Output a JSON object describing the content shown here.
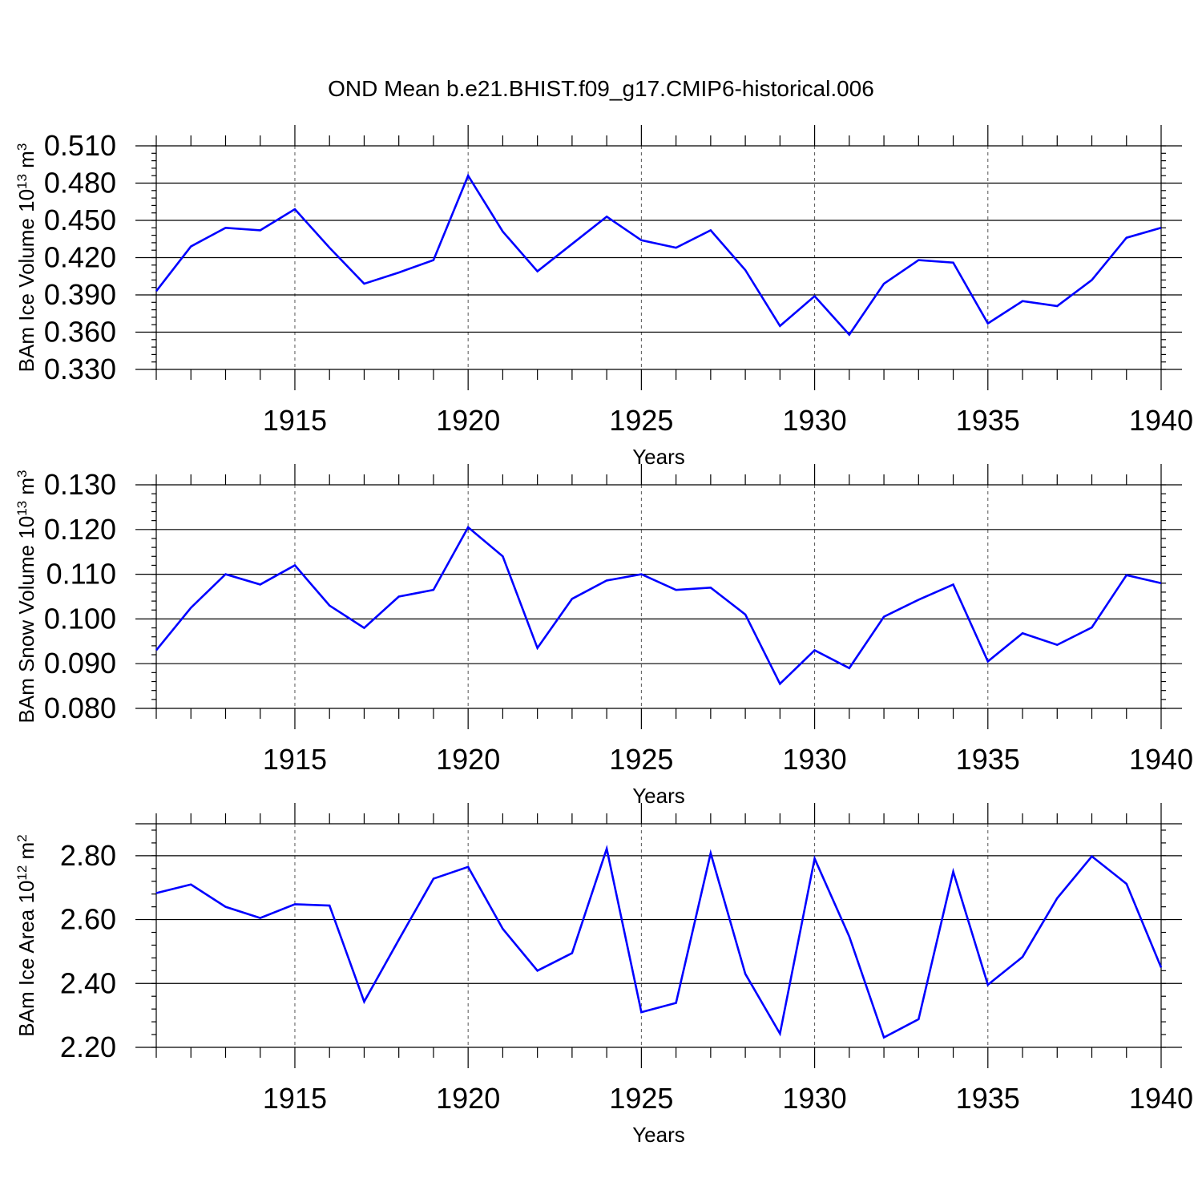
{
  "title": "OND Mean b.e21.BHIST.f09_g17.CMIP6-historical.006",
  "colors": {
    "line": "#0000ff",
    "axes": "#000000",
    "grid": "#555555"
  },
  "chart_data": [
    {
      "type": "line",
      "ylabel": {
        "name": "BAm Ice Volume",
        "base": "10",
        "exp": "13",
        "unit": "m",
        "unit_exp": "3"
      },
      "xlabel": "Years",
      "xlim": [
        1911,
        1940
      ],
      "ylim": [
        0.33,
        0.51
      ],
      "grid": "vertical dashed at labeled years",
      "xticks": [
        1915,
        1920,
        1925,
        1930,
        1935,
        1940
      ],
      "xtick_labels": [
        "1915",
        "1920",
        "1925",
        "1930",
        "1935",
        "1940"
      ],
      "yticks": [
        0.33,
        0.36,
        0.39,
        0.42,
        0.45,
        0.48,
        0.51
      ],
      "ytick_labels": [
        "0.330",
        "0.360",
        "0.390",
        "0.420",
        "0.450",
        "0.480",
        "0.510"
      ],
      "y_minor_step": 0.006,
      "x": [
        1911,
        1912,
        1913,
        1914,
        1915,
        1916,
        1917,
        1918,
        1919,
        1920,
        1921,
        1922,
        1923,
        1924,
        1925,
        1926,
        1927,
        1928,
        1929,
        1930,
        1931,
        1932,
        1933,
        1934,
        1935,
        1936,
        1937,
        1938,
        1939,
        1940
      ],
      "values": [
        0.393,
        0.429,
        0.444,
        0.442,
        0.459,
        0.428,
        0.399,
        0.408,
        0.418,
        0.486,
        0.441,
        0.409,
        0.431,
        0.453,
        0.434,
        0.428,
        0.442,
        0.41,
        0.365,
        0.389,
        0.358,
        0.399,
        0.418,
        0.416,
        0.367,
        0.385,
        0.381,
        0.402,
        0.436,
        0.444
      ]
    },
    {
      "type": "line",
      "ylabel": {
        "name": "BAm Snow Volume",
        "base": "10",
        "exp": "13",
        "unit": "m",
        "unit_exp": "3"
      },
      "xlabel": "Years",
      "xlim": [
        1911,
        1940
      ],
      "ylim": [
        0.08,
        0.13
      ],
      "grid": "vertical dashed at labeled years",
      "xticks": [
        1915,
        1920,
        1925,
        1930,
        1935,
        1940
      ],
      "xtick_labels": [
        "1915",
        "1920",
        "1925",
        "1930",
        "1935",
        "1940"
      ],
      "yticks": [
        0.08,
        0.09,
        0.1,
        0.11,
        0.12,
        0.13
      ],
      "ytick_labels": [
        "0.080",
        "0.090",
        "0.100",
        "0.110",
        "0.120",
        "0.130"
      ],
      "y_minor_step": 0.002,
      "x": [
        1911,
        1912,
        1913,
        1914,
        1915,
        1916,
        1917,
        1918,
        1919,
        1920,
        1921,
        1922,
        1923,
        1924,
        1925,
        1926,
        1927,
        1928,
        1929,
        1930,
        1931,
        1932,
        1933,
        1934,
        1935,
        1936,
        1937,
        1938,
        1939,
        1940
      ],
      "values": [
        0.093,
        0.1025,
        0.11,
        0.1077,
        0.112,
        0.103,
        0.098,
        0.105,
        0.1065,
        0.1205,
        0.114,
        0.0935,
        0.1045,
        0.1086,
        0.11,
        0.1065,
        0.107,
        0.101,
        0.0855,
        0.093,
        0.089,
        0.1005,
        0.1043,
        0.1077,
        0.0905,
        0.0968,
        0.0942,
        0.0981,
        0.1098,
        0.108
      ]
    },
    {
      "type": "line",
      "ylabel": {
        "name": "BAm Ice Area",
        "base": "10",
        "exp": "12",
        "unit": "m",
        "unit_exp": "2"
      },
      "xlabel": "Years",
      "xlim": [
        1911,
        1940
      ],
      "ylim": [
        2.2,
        2.9
      ],
      "grid": "vertical dashed at labeled years",
      "xticks": [
        1915,
        1920,
        1925,
        1930,
        1935,
        1940
      ],
      "xtick_labels": [
        "1915",
        "1920",
        "1925",
        "1930",
        "1935",
        "1940"
      ],
      "yticks": [
        2.2,
        2.4,
        2.6,
        2.8
      ],
      "ytick_labels": [
        "2.20",
        "2.40",
        "2.60",
        "2.80"
      ],
      "y_minor_step": 0.04,
      "x": [
        1911,
        1912,
        1913,
        1914,
        1915,
        1916,
        1917,
        1918,
        1919,
        1920,
        1921,
        1922,
        1923,
        1924,
        1925,
        1926,
        1927,
        1928,
        1929,
        1930,
        1931,
        1932,
        1933,
        1934,
        1935,
        1936,
        1937,
        1938,
        1939,
        1940
      ],
      "values": [
        2.683,
        2.71,
        2.64,
        2.605,
        2.648,
        2.644,
        2.343,
        2.537,
        2.728,
        2.765,
        2.571,
        2.44,
        2.495,
        2.822,
        2.31,
        2.339,
        2.808,
        2.43,
        2.243,
        2.791,
        2.547,
        2.231,
        2.288,
        2.75,
        2.396,
        2.483,
        2.667,
        2.798,
        2.712,
        2.45
      ]
    }
  ]
}
